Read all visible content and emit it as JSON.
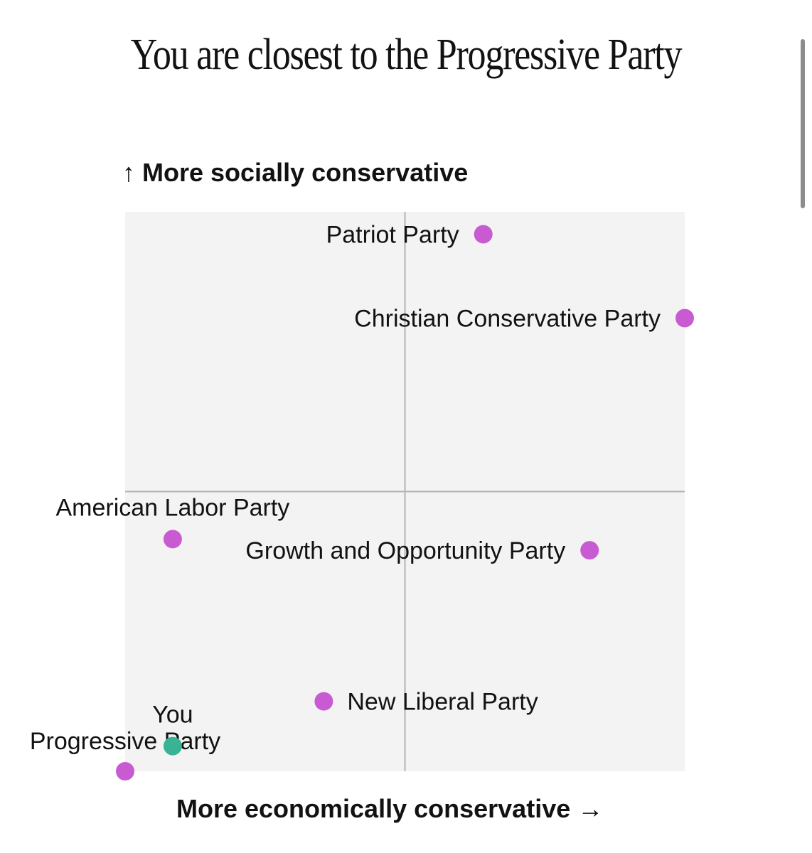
{
  "chart_data": {
    "type": "scatter",
    "title": "You are closest to the Progressive Party",
    "ylabel": "More socially conservative",
    "ylabel_arrow": "↑",
    "xlabel": "More economically conservative",
    "xlabel_arrow": "→",
    "xlim": [
      -1,
      1
    ],
    "ylim": [
      -1,
      1
    ],
    "grid": false,
    "quadrant_lines": true,
    "points": [
      {
        "label": "Patriot Party",
        "x": 0.28,
        "y": 0.92,
        "kind": "party",
        "label_side": "left"
      },
      {
        "label": "Christian Conservative Party",
        "x": 1.0,
        "y": 0.62,
        "kind": "party",
        "label_side": "left"
      },
      {
        "label": "American Labor Party",
        "x": -0.83,
        "y": -0.17,
        "kind": "party",
        "label_side": "above"
      },
      {
        "label": "Growth and Opportunity Party",
        "x": 0.66,
        "y": -0.21,
        "kind": "party",
        "label_side": "left"
      },
      {
        "label": "New Liberal Party",
        "x": -0.29,
        "y": -0.75,
        "kind": "party",
        "label_side": "right"
      },
      {
        "label": "Progressive Party",
        "x": -1.0,
        "y": -1.0,
        "kind": "party",
        "label_side": "above-right"
      },
      {
        "label": "You",
        "x": -0.83,
        "y": -0.91,
        "kind": "you",
        "label_side": "above"
      }
    ]
  },
  "colors": {
    "party": "#c95bd2",
    "you": "#38b394",
    "plot_background": "#f3f3f3",
    "quadrant_line": "#b3b3b3",
    "text": "#121212"
  }
}
